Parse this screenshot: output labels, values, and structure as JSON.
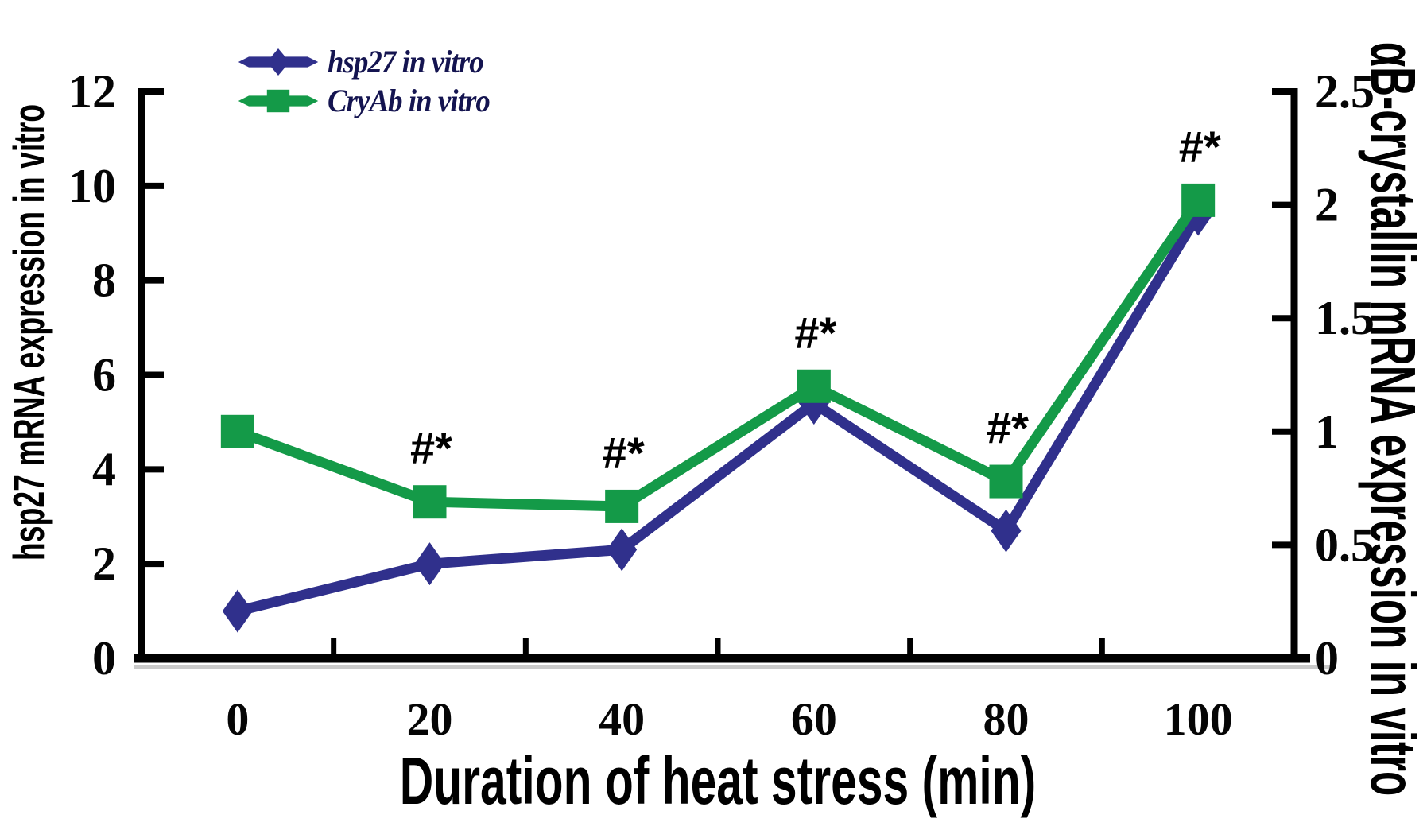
{
  "page": {
    "background": "#ffffff"
  },
  "chart_data": {
    "type": "line",
    "title": "",
    "xlabel": "Duration of heat stress (min)",
    "x_categories": [
      "0",
      "20",
      "40",
      "60",
      "80",
      "100"
    ],
    "left_axis": {
      "label": "hsp27 mRNA expression in vitro",
      "min": 0,
      "max": 12,
      "ticks": [
        0,
        2,
        4,
        6,
        8,
        10,
        12
      ],
      "tick_labels": [
        "0",
        "2",
        "4",
        "6",
        "8",
        "10",
        "12"
      ]
    },
    "right_axis": {
      "label": "αB-crystallin mRNA expression in vitro",
      "min": 0,
      "max": 2.5,
      "ticks": [
        0,
        0.5,
        1,
        1.5,
        2,
        2.5
      ],
      "tick_labels": [
        "0",
        "0.5",
        "1",
        "1.5",
        "2",
        "2.5"
      ]
    },
    "series": [
      {
        "name": "hsp27 in vitro",
        "axis": "left",
        "marker": "diamond",
        "color": "#30308C",
        "values": [
          1.0,
          2.0,
          2.3,
          5.4,
          2.7,
          9.4
        ]
      },
      {
        "name": "CryAb in vitro",
        "axis": "right",
        "marker": "square",
        "color": "#149A48",
        "values": [
          1.0,
          0.69,
          0.67,
          1.2,
          0.78,
          2.02
        ]
      }
    ],
    "annotations": [
      {
        "text": "#*",
        "x": "20",
        "attached_to": "CryAb in vitro"
      },
      {
        "text": "#*",
        "x": "40",
        "attached_to": "CryAb in vitro"
      },
      {
        "text": "#*",
        "x": "60",
        "attached_to": "CryAb in vitro"
      },
      {
        "text": "#*",
        "x": "80",
        "attached_to": "CryAb in vitro"
      },
      {
        "text": "#*",
        "x": "100",
        "attached_to": "CryAb in vitro"
      }
    ],
    "legend": {
      "position": "top-left",
      "items": [
        "hsp27 in vitro",
        "CryAb in vitro"
      ]
    },
    "grid": false,
    "ticks_between_categories": true,
    "colors": {
      "axis": "#000000",
      "tick_text": "#050505",
      "annotation": "#000000"
    }
  }
}
